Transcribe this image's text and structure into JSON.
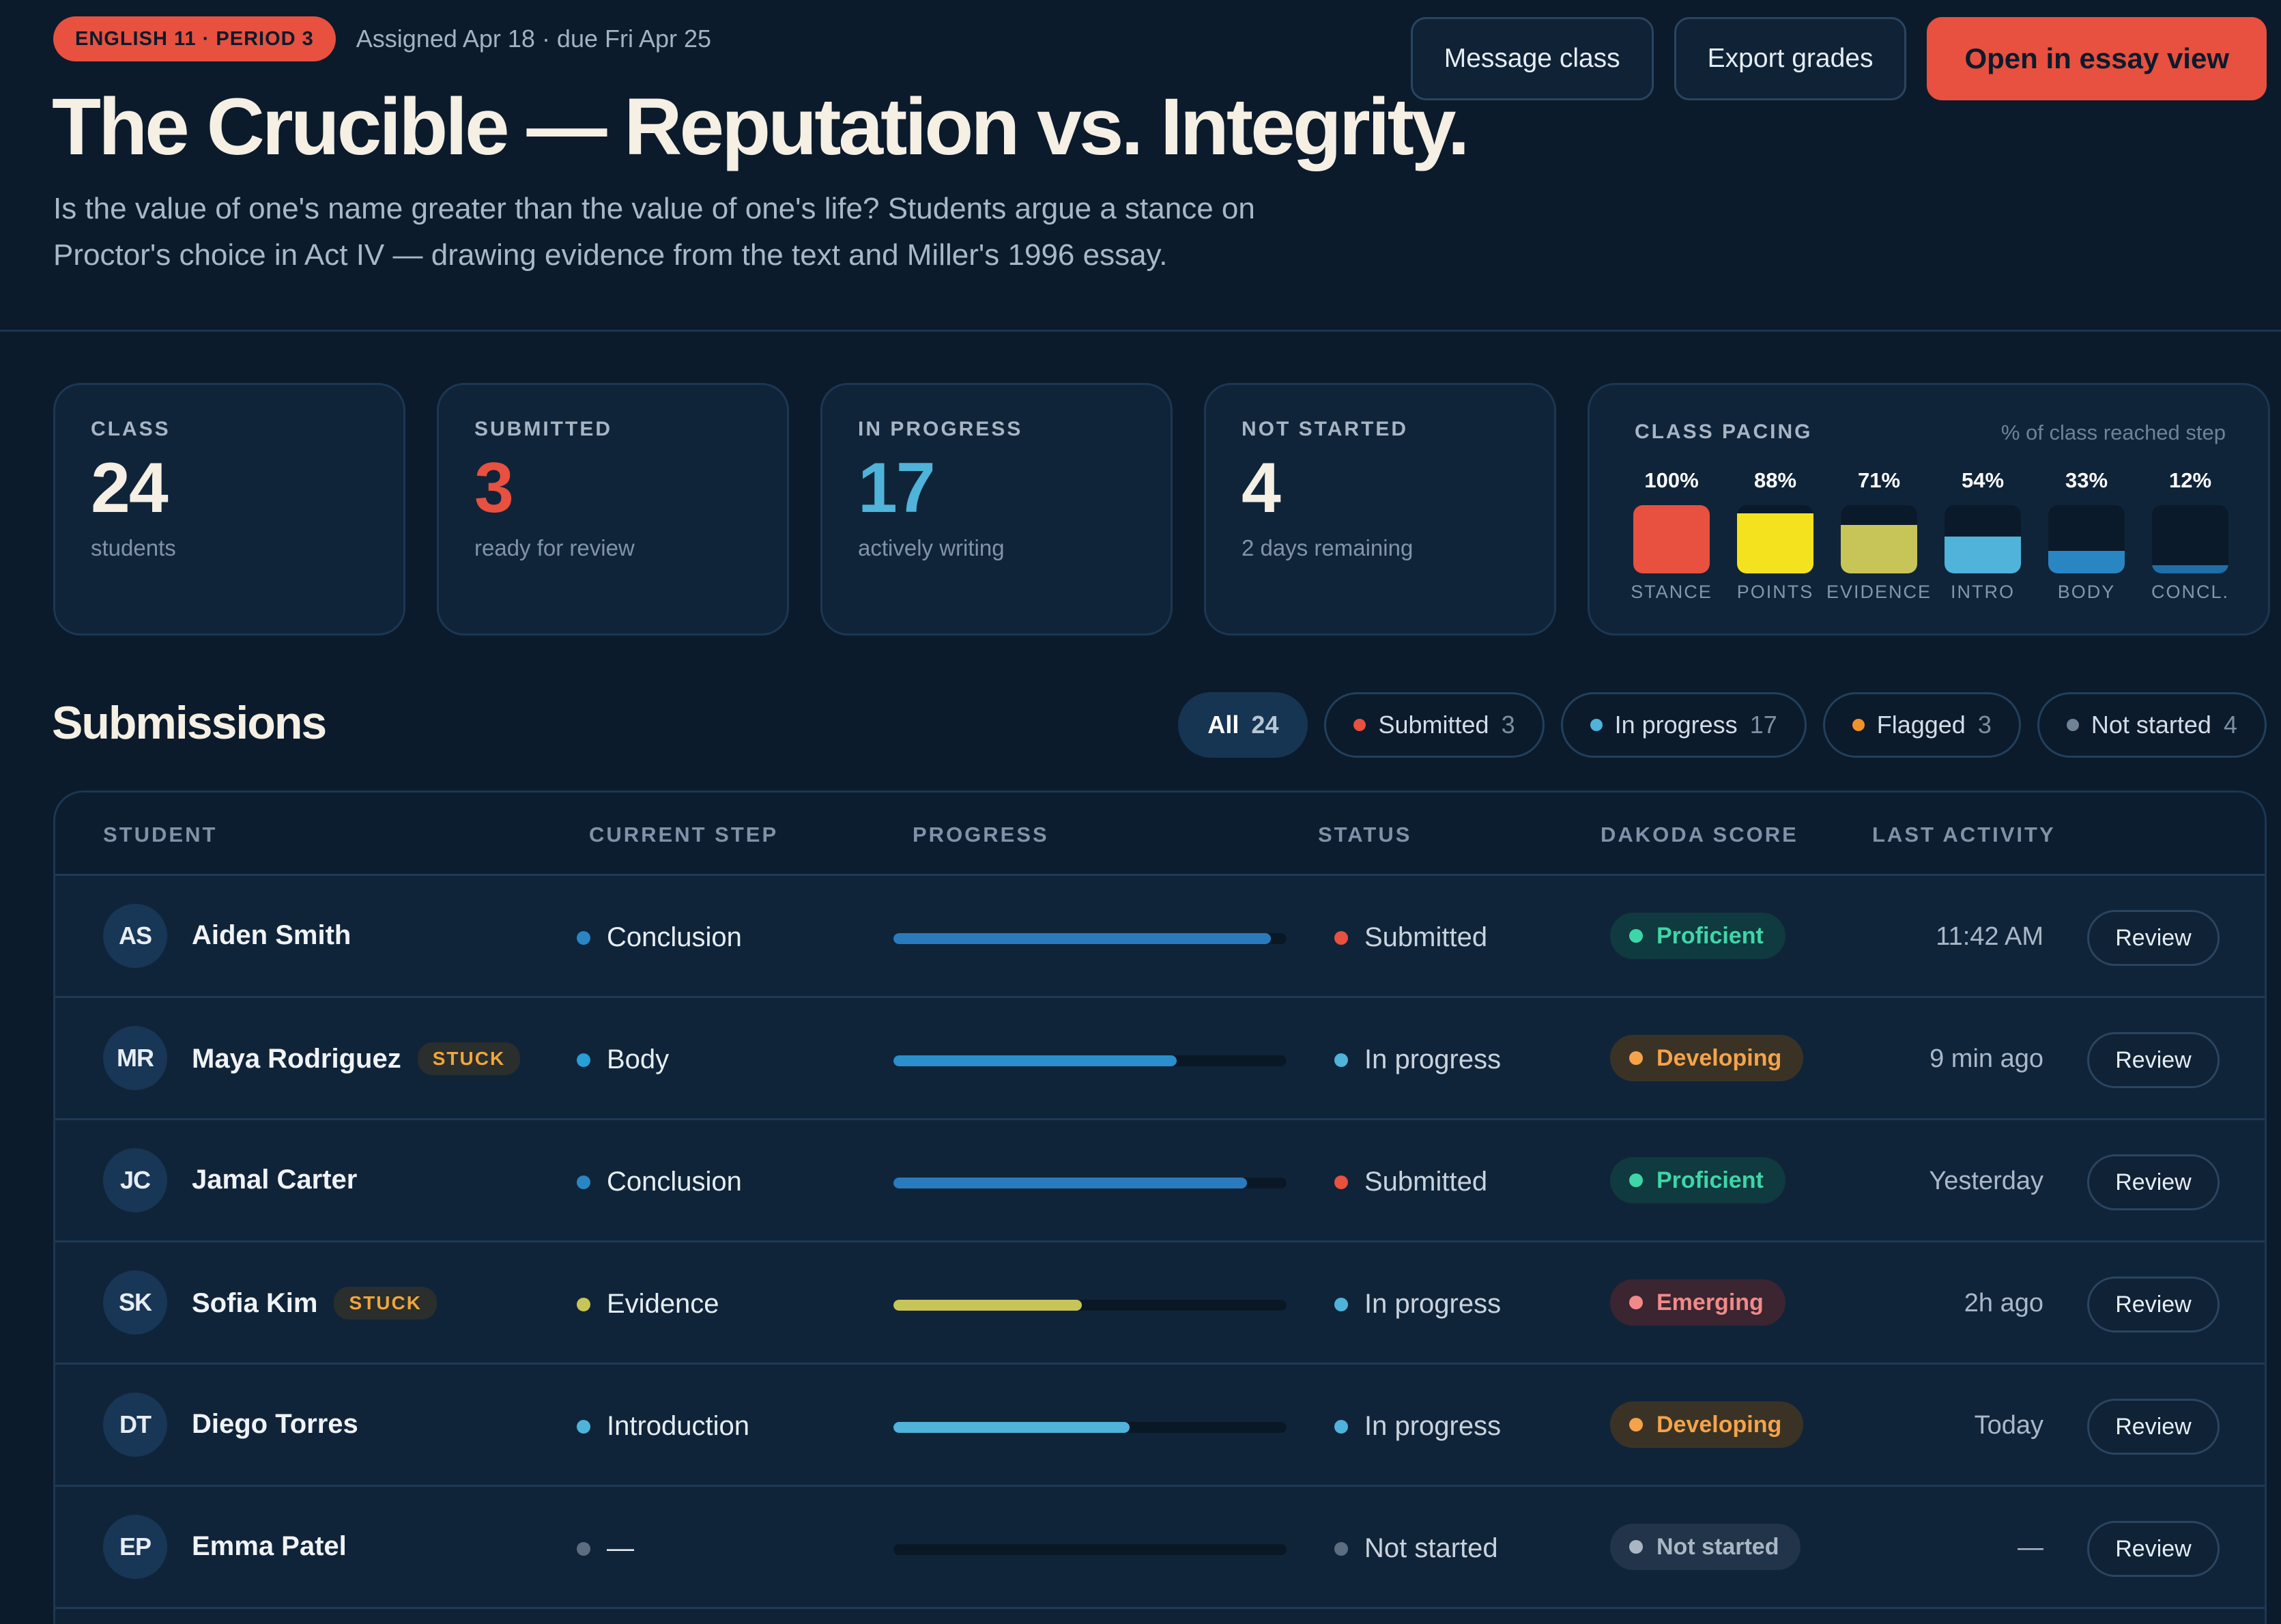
{
  "header": {
    "course": "ENGLISH 11 · PERIOD 3",
    "assigned": "Assigned Apr 18 · due Fri Apr 25",
    "title": "The Crucible — Reputation vs. Integrity.",
    "subtitle": "Is the value of one's name greater than the value of one's life? Students argue a stance on Proctor's choice in Act IV — drawing evidence from the text and Miller's 1996 essay.",
    "actions": {
      "message": "Message class",
      "export": "Export grades",
      "open": "Open in essay view"
    }
  },
  "stats": [
    {
      "label": "CLASS",
      "value": "24",
      "note": "students",
      "color": "#f5efe4"
    },
    {
      "label": "SUBMITTED",
      "value": "3",
      "note": "ready for review",
      "color": "#e8503f"
    },
    {
      "label": "IN PROGRESS",
      "value": "17",
      "note": "actively writing",
      "color": "#4fb3da"
    },
    {
      "label": "NOT STARTED",
      "value": "4",
      "note": "2 days remaining",
      "color": "#f5efe4"
    }
  ],
  "pacing": {
    "label": "CLASS PACING",
    "hint": "% of class reached step",
    "steps": [
      {
        "name": "STANCE",
        "pct_label": "100%",
        "fraction": 1.0,
        "color": "#e8503f"
      },
      {
        "name": "POINTS",
        "pct_label": "88%",
        "fraction": 0.88,
        "color": "#f5e21f"
      },
      {
        "name": "EVIDENCE",
        "pct_label": "71%",
        "fraction": 0.71,
        "color": "#c8c558"
      },
      {
        "name": "INTRO",
        "pct_label": "54%",
        "fraction": 0.54,
        "color": "#4fb3da"
      },
      {
        "name": "BODY",
        "pct_label": "33%",
        "fraction": 0.33,
        "color": "#2a86c3"
      },
      {
        "name": "CONCL.",
        "pct_label": "12%",
        "fraction": 0.12,
        "color": "#1f6ea8"
      }
    ]
  },
  "submissions": {
    "title": "Submissions",
    "filters": [
      {
        "label": "All",
        "count": "24",
        "active": true,
        "dot": ""
      },
      {
        "label": "Submitted",
        "count": "3",
        "active": false,
        "dot": "#e8503f"
      },
      {
        "label": "In progress",
        "count": "17",
        "active": false,
        "dot": "#4fb3da"
      },
      {
        "label": "Flagged",
        "count": "3",
        "active": false,
        "dot": "#f0922a"
      },
      {
        "label": "Not started",
        "count": "4",
        "active": false,
        "dot": "#6f8296"
      }
    ],
    "columns": {
      "student": "STUDENT",
      "step": "CURRENT STEP",
      "progress": "PROGRESS",
      "status": "STATUS",
      "score": "DAKODA SCORE",
      "activity": "LAST ACTIVITY"
    },
    "review_label": "Review",
    "stuck_label": "STUCK",
    "rows": [
      {
        "initials": "AS",
        "name": "Aiden Smith",
        "stuck": false,
        "step": "Conclusion",
        "step_color": "#2a86c3",
        "progress": 0.96,
        "progress_color": "#2a7bbd",
        "status": "Submitted",
        "status_color": "#e8503f",
        "score": "Proficient",
        "score_color": "#3ed6a8",
        "score_bg": "#0f3a3f",
        "activity": "11:42 AM"
      },
      {
        "initials": "MR",
        "name": "Maya Rodriguez",
        "stuck": true,
        "step": "Body",
        "step_color": "#2a9ed6",
        "progress": 0.72,
        "progress_color": "#2a8fcc",
        "status": "In progress",
        "status_color": "#4fb3da",
        "score": "Developing",
        "score_color": "#f5a34a",
        "score_bg": "#3a3325",
        "activity": "9 min ago"
      },
      {
        "initials": "JC",
        "name": "Jamal Carter",
        "stuck": false,
        "step": "Conclusion",
        "step_color": "#2a86c3",
        "progress": 0.9,
        "progress_color": "#2a7bbd",
        "status": "Submitted",
        "status_color": "#e8503f",
        "score": "Proficient",
        "score_color": "#3ed6a8",
        "score_bg": "#0f3a3f",
        "activity": "Yesterday"
      },
      {
        "initials": "SK",
        "name": "Sofia Kim",
        "stuck": true,
        "step": "Evidence",
        "step_color": "#c8c558",
        "progress": 0.48,
        "progress_color": "#c8c558",
        "status": "In progress",
        "status_color": "#4fb3da",
        "score": "Emerging",
        "score_color": "#f08a8a",
        "score_bg": "#3a2530",
        "activity": "2h ago"
      },
      {
        "initials": "DT",
        "name": "Diego Torres",
        "stuck": false,
        "step": "Introduction",
        "step_color": "#4fb3da",
        "progress": 0.6,
        "progress_color": "#4fb3da",
        "status": "In progress",
        "status_color": "#4fb3da",
        "score": "Developing",
        "score_color": "#f5a34a",
        "score_bg": "#3a3325",
        "activity": "Today"
      },
      {
        "initials": "EP",
        "name": "Emma Patel",
        "stuck": false,
        "step": "—",
        "step_color": "#5c6d80",
        "progress": 0.0,
        "progress_color": "#2a7bbd",
        "status": "Not started",
        "status_color": "#5c6d80",
        "score": "Not started",
        "score_color": "#aab6c3",
        "score_bg": "#213449",
        "activity": "—"
      }
    ]
  }
}
